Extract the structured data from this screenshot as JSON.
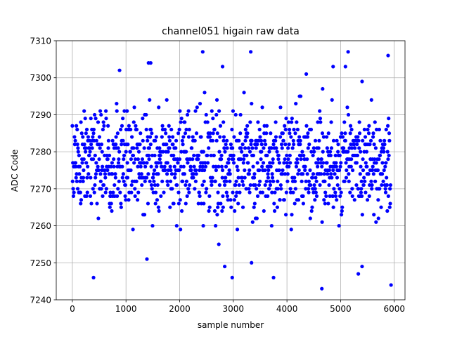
{
  "chart_data": {
    "type": "scatter",
    "title": "channel051 higain raw data",
    "xlabel": "sample number",
    "ylabel": "ADC Code",
    "xlim": [
      -300,
      6200
    ],
    "ylim": [
      7240,
      7310
    ],
    "xticks": [
      0,
      1000,
      2000,
      3000,
      4000,
      5000,
      6000
    ],
    "yticks": [
      7240,
      7250,
      7260,
      7270,
      7280,
      7290,
      7300,
      7310
    ],
    "grid": true,
    "marker_color": "#0000ff",
    "sample_range": [
      0,
      5930
    ],
    "value_center": 7277,
    "value_spread_std": 7.2,
    "series": [
      {
        "values_outliers": [
          {
            "x": 395,
            "y": 7246
          },
          {
            "x": 2430,
            "y": 7307
          },
          {
            "x": 3325,
            "y": 7307
          },
          {
            "x": 3340,
            "y": 7250
          },
          {
            "x": 3750,
            "y": 7246
          },
          {
            "x": 2980,
            "y": 7246
          },
          {
            "x": 4650,
            "y": 7243
          },
          {
            "x": 5140,
            "y": 7307
          },
          {
            "x": 5885,
            "y": 7306
          },
          {
            "x": 5940,
            "y": 7244
          },
          {
            "x": 1420,
            "y": 7304
          },
          {
            "x": 1460,
            "y": 7304
          },
          {
            "x": 880,
            "y": 7302
          },
          {
            "x": 2800,
            "y": 7303
          },
          {
            "x": 4860,
            "y": 7303
          },
          {
            "x": 5090,
            "y": 7303
          },
          {
            "x": 5330,
            "y": 7247
          },
          {
            "x": 5400,
            "y": 7249
          },
          {
            "x": 2840,
            "y": 7249
          },
          {
            "x": 1390,
            "y": 7251
          }
        ]
      }
    ]
  }
}
